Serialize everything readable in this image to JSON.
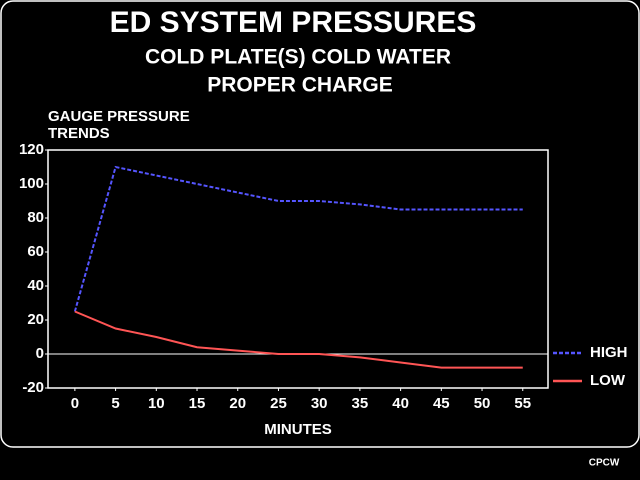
{
  "chart_data": {
    "type": "line",
    "title": "ED SYSTEM PRESSURES",
    "subtitle": [
      "COLD PLATE(S) COLD WATER",
      "PROPER CHARGE"
    ],
    "ylabel": [
      "GAUGE PRESSURE",
      "TRENDS"
    ],
    "xlabel": "MINUTES",
    "footnote": "CPCW",
    "x": [
      0,
      5,
      10,
      15,
      20,
      25,
      30,
      35,
      40,
      45,
      50,
      55
    ],
    "series": [
      {
        "name": "HIGH",
        "color": "#5555ff",
        "dashed": true,
        "values": [
          25,
          110,
          105,
          100,
          95,
          90,
          90,
          88,
          85,
          85,
          85,
          85
        ]
      },
      {
        "name": "LOW",
        "color": "#ff5555",
        "dashed": false,
        "values": [
          25,
          15,
          10,
          4,
          2,
          0,
          0,
          -2,
          -5,
          -8,
          -8,
          -8
        ]
      }
    ],
    "xlim": [
      -3.3,
      58.1
    ],
    "ylim": [
      -20,
      120
    ],
    "xticks": [
      0,
      5,
      10,
      15,
      20,
      25,
      30,
      35,
      40,
      45,
      50,
      55
    ],
    "yticks": [
      -20,
      0,
      20,
      40,
      60,
      80,
      100,
      120
    ],
    "zero_line": true,
    "legend": "right"
  }
}
